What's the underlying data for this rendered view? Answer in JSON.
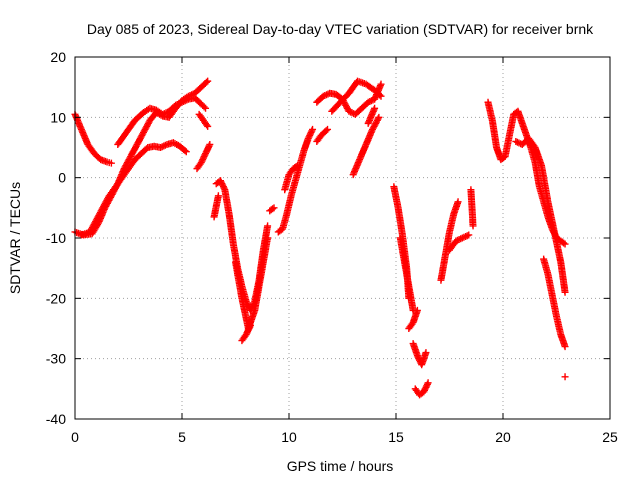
{
  "chart_data": {
    "type": "scatter",
    "title": "Day 085 of 2023, Sidereal Day-to-day VTEC variation (SDTVAR) for receiver brnk",
    "xlabel": "GPS time / hours",
    "ylabel": "SDTVAR / TECUs",
    "xlim": [
      0,
      25
    ],
    "ylim": [
      -40,
      20
    ],
    "xticks": [
      0,
      5,
      10,
      15,
      20,
      25
    ],
    "yticks": [
      -40,
      -30,
      -20,
      -10,
      0,
      10,
      20
    ],
    "xtick_labels": [
      "0",
      "5",
      "10",
      "15",
      "20",
      "25"
    ],
    "ytick_labels": [
      "-40",
      "-30",
      "-20",
      "-10",
      "0",
      "10",
      "20"
    ],
    "grid": true,
    "marker": "+",
    "color": "#ff0000",
    "series": [
      {
        "x": [
          0.0,
          0.3,
          0.6,
          0.9,
          1.2,
          1.5,
          1.7
        ],
        "y": [
          10.5,
          8.0,
          5.5,
          4.0,
          3.0,
          2.6,
          2.4
        ]
      },
      {
        "x": [
          0.0,
          0.4,
          0.8,
          1.1,
          1.4,
          1.7,
          2.0,
          2.3,
          2.6,
          2.9,
          3.2,
          3.5,
          3.8,
          4.1,
          4.4,
          4.7,
          5.0,
          5.3,
          5.6,
          5.9,
          6.2
        ],
        "y": [
          -9.0,
          -9.5,
          -9.3,
          -7.5,
          -5.0,
          -3.0,
          -1.0,
          1.5,
          3.5,
          5.5,
          7.5,
          9.5,
          10.8,
          10.2,
          10.0,
          11.5,
          12.8,
          13.5,
          14.0,
          15.0,
          16.0
        ]
      },
      {
        "x": [
          0.3,
          0.7,
          1.0,
          1.3,
          1.6,
          1.9,
          2.2,
          2.5,
          2.8,
          3.1,
          3.4,
          3.7,
          4.0,
          4.3,
          4.6,
          4.9,
          5.2
        ],
        "y": [
          -9.5,
          -9.0,
          -7.0,
          -5.0,
          -3.0,
          -1.5,
          0.0,
          1.5,
          3.0,
          4.0,
          5.0,
          5.2,
          5.0,
          5.5,
          5.8,
          5.2,
          4.3
        ]
      },
      {
        "x": [
          2.0,
          2.4,
          2.8,
          3.2,
          3.5,
          3.8,
          4.1,
          4.4,
          4.7,
          5.0,
          5.3,
          5.6,
          5.9,
          6.1
        ],
        "y": [
          5.5,
          7.5,
          9.5,
          10.8,
          11.5,
          11.2,
          10.5,
          11.0,
          12.0,
          12.5,
          13.0,
          13.2,
          12.2,
          11.5
        ]
      },
      {
        "x": [
          5.7,
          5.9,
          6.1,
          6.3
        ],
        "y": [
          1.5,
          2.5,
          4.0,
          5.5
        ]
      },
      {
        "x": [
          5.8,
          6.0,
          6.2
        ],
        "y": [
          10.5,
          9.5,
          8.5
        ]
      },
      {
        "x": [
          6.6,
          6.8,
          7.0,
          7.2,
          7.4,
          7.6,
          7.8,
          8.0,
          8.2,
          8.4,
          8.6,
          8.8,
          9.0
        ],
        "y": [
          -1.0,
          -0.5,
          -2.0,
          -6.0,
          -11.0,
          -15.0,
          -18.0,
          -20.5,
          -22.0,
          -20.5,
          -17.0,
          -12.0,
          -8.0
        ]
      },
      {
        "x": [
          7.5,
          7.8,
          8.1,
          8.4,
          8.7,
          9.0
        ],
        "y": [
          -14.0,
          -20.0,
          -25.0,
          -22.0,
          -16.0,
          -10.0
        ]
      },
      {
        "x": [
          7.8,
          8.0,
          8.2
        ],
        "y": [
          -27.0,
          -26.0,
          -24.5
        ]
      },
      {
        "x": [
          6.5,
          6.7
        ],
        "y": [
          -6.5,
          -3.0
        ]
      },
      {
        "x": [
          9.1,
          9.3
        ],
        "y": [
          -5.5,
          -5.0
        ]
      },
      {
        "x": [
          9.5,
          9.7,
          9.9,
          10.1,
          10.3,
          10.5,
          10.7,
          10.9,
          11.1
        ],
        "y": [
          -9.0,
          -8.5,
          -6.0,
          -3.0,
          -0.5,
          2.0,
          4.5,
          6.5,
          8.0
        ]
      },
      {
        "x": [
          9.8,
          10.0,
          10.2,
          10.4
        ],
        "y": [
          -2.0,
          0.5,
          1.5,
          2.0
        ]
      },
      {
        "x": [
          11.3,
          11.5,
          11.8
        ],
        "y": [
          6.0,
          7.0,
          8.0
        ]
      },
      {
        "x": [
          11.3,
          11.6,
          11.9,
          12.2,
          12.5,
          12.8,
          13.1,
          13.4,
          13.7,
          14.0,
          14.3
        ],
        "y": [
          12.5,
          13.5,
          14.0,
          13.8,
          13.0,
          11.0,
          10.5,
          11.5,
          12.5,
          13.0,
          15.5
        ]
      },
      {
        "x": [
          12.0,
          12.4,
          12.8,
          13.2,
          13.6,
          14.0,
          14.3
        ],
        "y": [
          11.0,
          12.5,
          14.0,
          16.0,
          15.5,
          14.5,
          13.5
        ]
      },
      {
        "x": [
          13.0,
          13.3,
          13.6,
          13.9,
          14.2
        ],
        "y": [
          0.5,
          3.0,
          5.5,
          8.0,
          10.0
        ]
      },
      {
        "x": [
          13.7,
          14.0
        ],
        "y": [
          9.0,
          11.5
        ]
      },
      {
        "x": [
          14.9,
          15.1,
          15.3,
          15.5,
          15.6
        ],
        "y": [
          -1.5,
          -5.0,
          -9.5,
          -15.0,
          -20.0
        ]
      },
      {
        "x": [
          15.2,
          15.4,
          15.6,
          15.8
        ],
        "y": [
          -10.0,
          -14.0,
          -18.0,
          -22.0
        ]
      },
      {
        "x": [
          15.6,
          15.8,
          16.0
        ],
        "y": [
          -25.0,
          -24.0,
          -22.0
        ]
      },
      {
        "x": [
          15.8,
          16.0,
          16.2,
          16.4
        ],
        "y": [
          -27.5,
          -29.5,
          -31.0,
          -29.0
        ]
      },
      {
        "x": [
          15.9,
          16.1,
          16.3,
          16.5
        ],
        "y": [
          -35.0,
          -36.0,
          -35.5,
          -34.0
        ]
      },
      {
        "x": [
          17.1,
          17.3,
          17.5,
          17.7,
          17.9
        ],
        "y": [
          -17.0,
          -13.0,
          -9.0,
          -6.0,
          -4.0
        ]
      },
      {
        "x": [
          17.5,
          17.8,
          18.1,
          18.4
        ],
        "y": [
          -12.0,
          -10.5,
          -10.0,
          -9.5
        ]
      },
      {
        "x": [
          18.5,
          18.6
        ],
        "y": [
          -2.0,
          -8.0
        ]
      },
      {
        "x": [
          19.3,
          19.5,
          19.7,
          19.9,
          20.1,
          20.3,
          20.5,
          20.7,
          20.9,
          21.1,
          21.3,
          21.5,
          21.7,
          21.9,
          22.1,
          22.3,
          22.5,
          22.7,
          22.9
        ],
        "y": [
          12.5,
          9.5,
          5.0,
          3.0,
          3.5,
          7.0,
          10.5,
          11.0,
          9.0,
          7.0,
          5.0,
          2.5,
          -1.5,
          -4.0,
          -6.5,
          -8.5,
          -10.0,
          -10.5,
          -11.0
        ]
      },
      {
        "x": [
          20.6,
          20.9,
          21.2,
          21.5,
          21.8,
          22.1,
          22.4,
          22.7,
          22.9
        ],
        "y": [
          6.0,
          5.5,
          6.5,
          5.0,
          2.0,
          -4.0,
          -9.0,
          -14.0,
          -19.0
        ]
      },
      {
        "x": [
          21.9,
          22.1,
          22.3,
          22.5,
          22.7,
          22.9
        ],
        "y": [
          -13.5,
          -16.0,
          -19.5,
          -23.0,
          -26.0,
          -28.0
        ]
      },
      {
        "x": [
          22.9
        ],
        "y": [
          -33.0
        ]
      }
    ]
  }
}
